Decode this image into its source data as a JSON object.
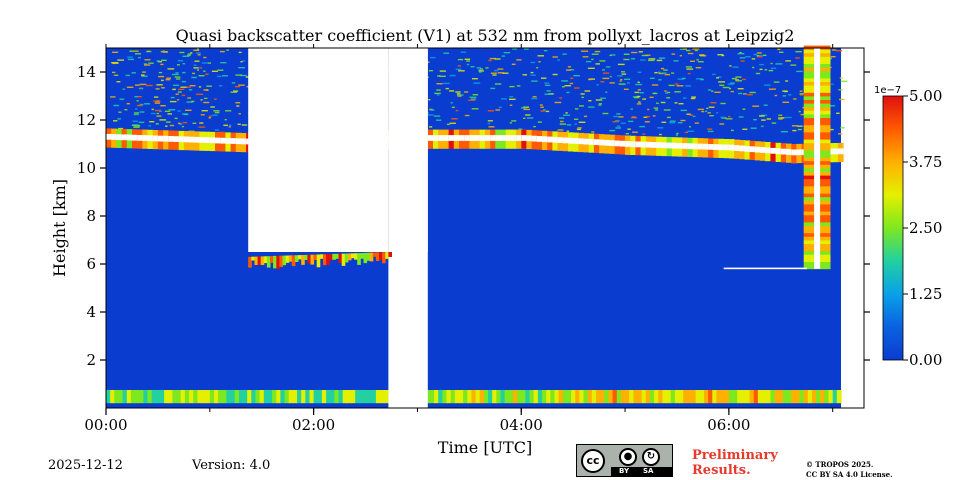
{
  "chart_data": {
    "type": "heatmap",
    "title": "Quasi backscatter coefficient (V1) at 532 nm from pollyxt_lacros at Leipzig2",
    "xlabel": "Time [UTC]",
    "ylabel": "Height [km]",
    "x_range_hours": [
      0,
      7.08
    ],
    "y_range_km": [
      0,
      15
    ],
    "x_ticks": [
      {
        "value": 0,
        "label": "00:00"
      },
      {
        "value": 2,
        "label": "02:00"
      },
      {
        "value": 4,
        "label": "04:00"
      },
      {
        "value": 6,
        "label": "06:00"
      }
    ],
    "y_ticks": [
      {
        "value": 2,
        "label": "2"
      },
      {
        "value": 4,
        "label": "4"
      },
      {
        "value": 6,
        "label": "6"
      },
      {
        "value": 8,
        "label": "8"
      },
      {
        "value": 10,
        "label": "10"
      },
      {
        "value": 12,
        "label": "12"
      },
      {
        "value": 14,
        "label": "14"
      }
    ],
    "colorbar": {
      "min": 0,
      "max": 5.0,
      "exponent_label": "1e−7",
      "ticks": [
        {
          "value": 0,
          "label": "0.00"
        },
        {
          "value": 1.25,
          "label": "1.25"
        },
        {
          "value": 2.5,
          "label": "2.50"
        },
        {
          "value": 3.75,
          "label": "3.75"
        },
        {
          "value": 5.0,
          "label": "5.00"
        }
      ],
      "colormap": [
        "#0a3ccf",
        "#0a62e0",
        "#0aa0e8",
        "#22d0a0",
        "#7de820",
        "#e4f000",
        "#ffb000",
        "#ff5a00",
        "#e01010"
      ]
    },
    "features": {
      "no_data_gaps_hours": [
        [
          1.37,
          2.72
        ],
        [
          2.72,
          3.1
        ]
      ],
      "cloud_layer": [
        {
          "t": 0.0,
          "h": 11.3
        },
        {
          "t": 1.37,
          "h": 11.1
        },
        {
          "t": 3.1,
          "h": 11.25
        },
        {
          "t": 4.0,
          "h": 11.25
        },
        {
          "t": 5.0,
          "h": 11.0
        },
        {
          "t": 6.0,
          "h": 10.85
        },
        {
          "t": 6.6,
          "h": 10.65
        },
        {
          "t": 7.08,
          "h": 10.7
        }
      ],
      "low_cloud_top_km": [
        {
          "t": 1.37,
          "h": 6.5
        },
        {
          "t": 2.72,
          "h": 6.7
        }
      ],
      "vertical_cloud_column": {
        "t": [
          6.75,
          6.95
        ],
        "h": [
          5.8,
          15
        ]
      },
      "boundary_layer_km": [
        0.2,
        0.75
      ]
    }
  },
  "footer": {
    "date": "2025-12-12",
    "version": "Version: 4.0",
    "license_badge": {
      "cc": "cc",
      "by": "BY",
      "sa": "SA"
    },
    "preliminary": [
      "Preliminary",
      "Results."
    ],
    "copyright": [
      "© TROPOS 2025.",
      "CC BY SA 4.0 License."
    ]
  }
}
